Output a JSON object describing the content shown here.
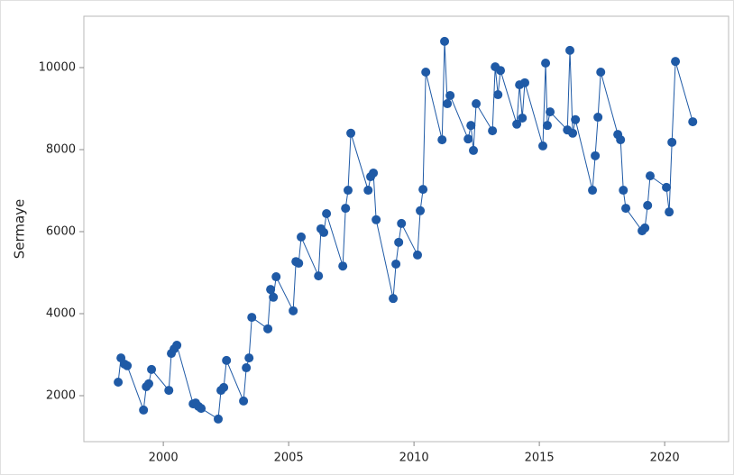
{
  "chart_data": {
    "type": "line",
    "ylabel": "Sermaye",
    "x": [
      1998.2,
      1998.31,
      1998.45,
      1998.56,
      1999.21,
      1999.32,
      1999.42,
      1999.53,
      2000.22,
      2000.32,
      2000.43,
      2000.54,
      2001.19,
      2001.29,
      2001.4,
      2001.51,
      2002.19,
      2002.3,
      2002.41,
      2002.52,
      2003.2,
      2003.31,
      2003.42,
      2003.53,
      2004.17,
      2004.28,
      2004.39,
      2004.5,
      2005.18,
      2005.29,
      2005.4,
      2005.5,
      2006.19,
      2006.29,
      2006.4,
      2006.51,
      2007.16,
      2007.27,
      2007.37,
      2007.48,
      2008.17,
      2008.27,
      2008.38,
      2008.49,
      2009.17,
      2009.28,
      2009.39,
      2009.5,
      2010.14,
      2010.25,
      2010.36,
      2010.47,
      2011.12,
      2011.22,
      2011.33,
      2011.44,
      2012.16,
      2012.27,
      2012.37,
      2012.48,
      2013.13,
      2013.24,
      2013.35,
      2013.45,
      2014.1,
      2014.21,
      2014.32,
      2014.42,
      2015.14,
      2015.25,
      2015.32,
      2015.43,
      2016.12,
      2016.22,
      2016.33,
      2016.44,
      2017.12,
      2017.23,
      2017.34,
      2017.45,
      2018.13,
      2018.24,
      2018.35,
      2018.45,
      2019.1,
      2019.21,
      2019.32,
      2019.42,
      2020.07,
      2020.18,
      2020.29,
      2020.43,
      2021.12
    ],
    "series": [
      {
        "color": "#1f5aa6",
        "values": [
          2330,
          2920,
          2770,
          2730,
          1650,
          2220,
          2290,
          2640,
          2130,
          3030,
          3140,
          3230,
          1800,
          1820,
          1740,
          1690,
          1430,
          2130,
          2200,
          2860,
          1870,
          2680,
          2920,
          3910,
          3630,
          4590,
          4400,
          4900,
          4070,
          5270,
          5230,
          5870,
          4920,
          6070,
          5980,
          6440,
          5160,
          6570,
          7010,
          8400,
          7010,
          7340,
          7430,
          6290,
          4370,
          5210,
          5740,
          6200,
          5430,
          6510,
          7030,
          9890,
          8240,
          10640,
          9120,
          9320,
          8260,
          8590,
          7980,
          9120,
          8460,
          10020,
          9340,
          9930,
          8620,
          9580,
          8770,
          9630,
          8090,
          10110,
          8590,
          8920,
          8480,
          10420,
          8400,
          8730,
          7010,
          7850,
          8790,
          9890,
          8370,
          8240,
          7010,
          6570,
          6020,
          6090,
          6640,
          7360,
          7080,
          6480,
          8180,
          10150,
          8680
        ]
      }
    ],
    "xlim": [
      1996.83,
      2022.55
    ],
    "xticks": [
      2000,
      2005,
      2010,
      2015,
      2020
    ],
    "ylim": [
      879,
      11253
    ],
    "yticks": [
      2000,
      4000,
      6000,
      8000,
      10000
    ],
    "grid": false
  }
}
